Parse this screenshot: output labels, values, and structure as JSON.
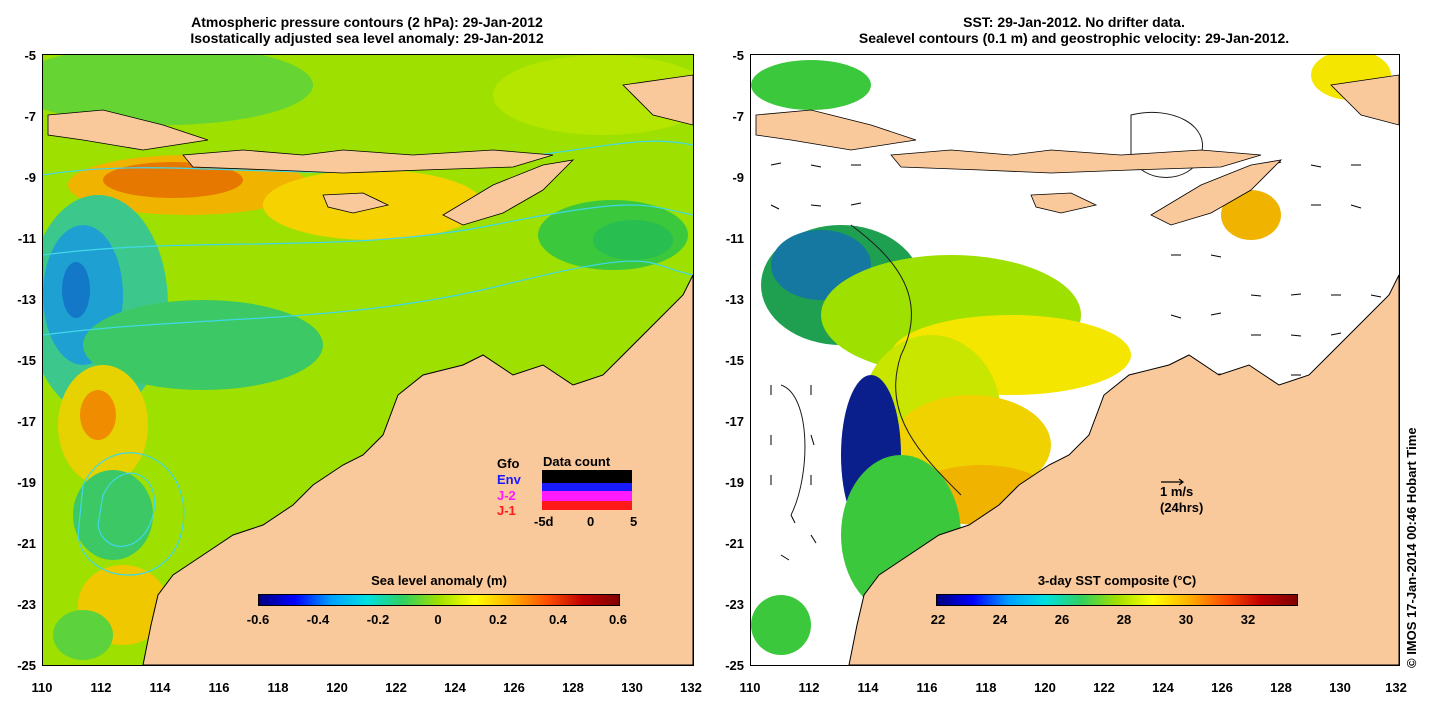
{
  "left_panel": {
    "title_line1": "Atmospheric pressure contours (2 hPa): 29-Jan-2012",
    "title_line2": "Isostatically adjusted sea level anomaly: 29-Jan-2012",
    "colorbar_label": "Sea level anomaly (m)",
    "colorbar_ticks": [
      "-0.6",
      "-0.4",
      "-0.2",
      "0",
      "0.2",
      "0.4",
      "0.6"
    ],
    "legend": {
      "header": "Data count",
      "items": [
        {
          "label": "Gfo",
          "color": "#000000"
        },
        {
          "label": "Env",
          "color": "#1a1aff"
        },
        {
          "label": "J-2",
          "color": "#ff1aff"
        },
        {
          "label": "J-1",
          "color": "#ff1a1a"
        }
      ],
      "axis_ticks": [
        "-5d",
        "0",
        "5"
      ]
    }
  },
  "right_panel": {
    "title_line1": "SST: 29-Jan-2012. No drifter data.",
    "title_line2": "Sealevel contours (0.1 m) and geostrophic velocity: 29-Jan-2012.",
    "colorbar_label": "3-day SST composite (°C)",
    "colorbar_ticks": [
      "22",
      "24",
      "26",
      "28",
      "30",
      "32"
    ],
    "scale_arrow_label": "1 m/s",
    "scale_arrow_sublabel": "(24hrs)"
  },
  "axes": {
    "y_ticks": [
      "-5",
      "-7",
      "-9",
      "-11",
      "-13",
      "-15",
      "-17",
      "-19",
      "-21",
      "-23",
      "-25"
    ],
    "x_ticks": [
      "110",
      "112",
      "114",
      "116",
      "118",
      "120",
      "122",
      "124",
      "126",
      "128",
      "130",
      "132"
    ]
  },
  "copyright": "© IMOS 17-Jan-2014 00:46 Hobart Time",
  "colors": {
    "land": "#f9c89b",
    "ocean_base": "#9ee000",
    "sla_high": "#f08c00",
    "sla_low": "#00b4d8"
  }
}
